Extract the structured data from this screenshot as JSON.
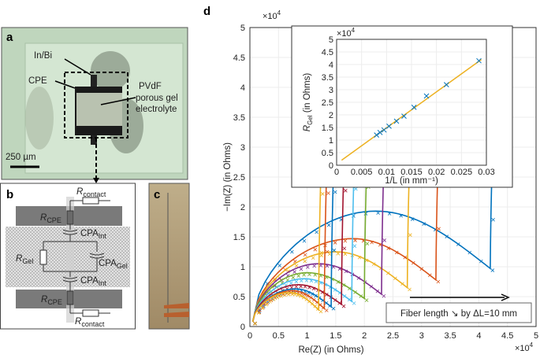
{
  "panels": {
    "a": {
      "label": "a",
      "annotations": {
        "inbi": "In/Bi",
        "cpe": "CPE",
        "pvdf_1": "PVdF",
        "pvdf_2": "porous gel",
        "pvdf_3": "electrolyte"
      },
      "scale_bar": "250 µm"
    },
    "b": {
      "label": "b",
      "components": {
        "r": "R",
        "contact": "contact",
        "cpe": "CPE",
        "gel": "Gel",
        "cpa": "CPA",
        "int": "Int"
      }
    },
    "c": {
      "label": "c"
    },
    "d": {
      "label": "d"
    }
  },
  "chart_data": [
    {
      "type": "line",
      "xlabel": "Re(Z) (in Ohms)",
      "ylabel": "−Im(Z) (in Ohms)",
      "x_multiplier": "×10",
      "y_multiplier": "×10",
      "exponent": "4",
      "xlim": [
        0,
        5
      ],
      "ylim": [
        0,
        5
      ],
      "xticks": [
        "0",
        "0.5",
        "1",
        "1.5",
        "2",
        "2.5",
        "3",
        "3.5",
        "4",
        "4.5",
        "5"
      ],
      "yticks": [
        "0",
        "0.5",
        "1",
        "1.5",
        "2",
        "2.5",
        "3",
        "3.5",
        "4",
        "4.5",
        "5"
      ],
      "grid": true,
      "markers": "x (measured), solid line (fit)",
      "annotation": "Fiber length ↘ by ΔL=10 mm",
      "series": [
        {
          "color": "#0072BD",
          "peak": [
            2.2,
            1.93
          ],
          "minimum": [
            4.2,
            0.97
          ]
        },
        {
          "color": "#D95319",
          "peak": [
            1.8,
            1.47
          ],
          "minimum": [
            3.25,
            0.78
          ]
        },
        {
          "color": "#EDB120",
          "peak": [
            1.5,
            1.25
          ],
          "minimum": [
            2.75,
            0.65
          ]
        },
        {
          "color": "#7E2F8E",
          "peak": [
            1.2,
            1.05
          ],
          "minimum": [
            2.3,
            0.54
          ]
        },
        {
          "color": "#77AC30",
          "peak": [
            1.0,
            0.9
          ],
          "minimum": [
            2.0,
            0.47
          ]
        },
        {
          "color": "#4DBEEE",
          "peak": [
            0.95,
            0.8
          ],
          "minimum": [
            1.78,
            0.42
          ]
        },
        {
          "color": "#A2142F",
          "peak": [
            0.85,
            0.7
          ],
          "minimum": [
            1.6,
            0.37
          ]
        },
        {
          "color": "#0072BD",
          "peak": [
            0.8,
            0.63
          ],
          "minimum": [
            1.42,
            0.33
          ]
        },
        {
          "color": "#D95319",
          "peak": [
            0.75,
            0.6
          ],
          "minimum": [
            1.3,
            0.3
          ]
        },
        {
          "color": "#EDB120",
          "peak": [
            0.7,
            0.57
          ],
          "minimum": [
            1.2,
            0.28
          ]
        }
      ]
    },
    {
      "type": "scatter",
      "xlabel": "1/L (in mm⁻¹)",
      "ylabel_main": "R",
      "ylabel_sub": "Gel",
      "ylabel_rest": " (in Ohms)",
      "y_multiplier": "×10",
      "exponent": "4",
      "xlim": [
        0,
        0.03
      ],
      "ylim": [
        0,
        5
      ],
      "xticks": [
        "0",
        "0.005",
        "0.01",
        "0.015",
        "0.02",
        "0.025",
        "0.03"
      ],
      "yticks": [
        "0",
        "0.5",
        "1",
        "1.5",
        "2",
        "2.5",
        "3",
        "3.5",
        "4",
        "4.5",
        "5"
      ],
      "grid": true,
      "x": [
        0.008,
        0.0087,
        0.0095,
        0.0105,
        0.012,
        0.0135,
        0.0155,
        0.018,
        0.022,
        0.0285
      ],
      "y": [
        1.2,
        1.3,
        1.4,
        1.55,
        1.75,
        1.95,
        2.3,
        2.75,
        3.2,
        4.15
      ],
      "point_color": "#0072BD",
      "fit": {
        "x": [
          0.001,
          0.029
        ],
        "y": [
          0.2,
          4.2
        ],
        "color": "#EDB120"
      }
    }
  ]
}
